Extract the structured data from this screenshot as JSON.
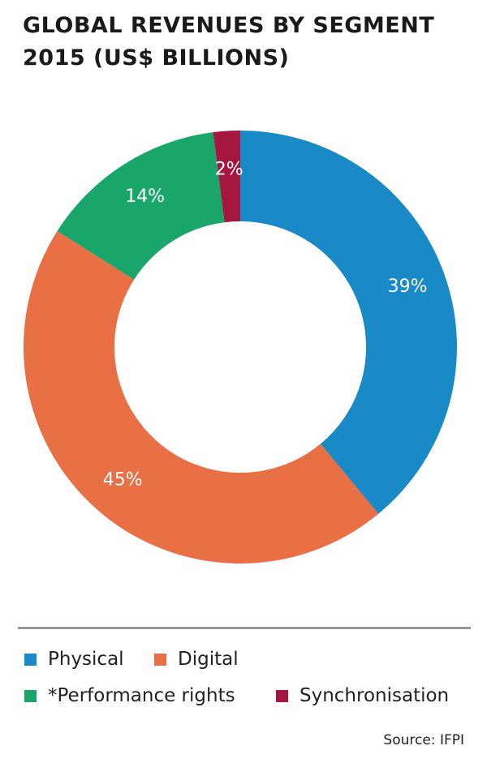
{
  "chart_data": {
    "type": "donut",
    "title": "GLOBAL REVENUES BY SEGMENT 2015 (US$ BILLIONS)",
    "categories": [
      "Physical",
      "Digital",
      "*Performance rights",
      "Synchronisation"
    ],
    "values": [
      39,
      45,
      14,
      2
    ],
    "value_labels": [
      "39%",
      "45%",
      "14%",
      "2%"
    ],
    "colors": [
      "#1a8ac6",
      "#e96f44",
      "#1aa56b",
      "#a6173f"
    ],
    "source": "Source: IFPI"
  }
}
